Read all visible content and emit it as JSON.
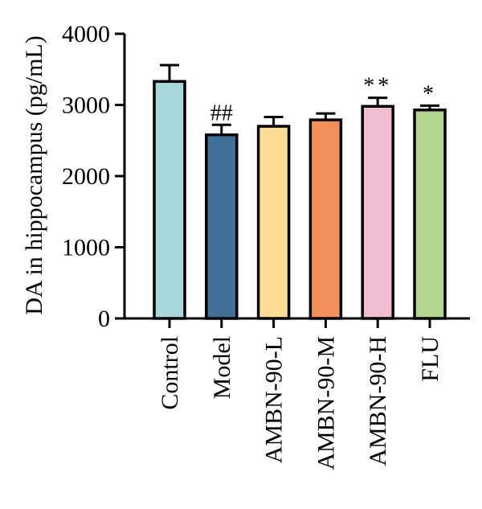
{
  "chart_data": {
    "type": "bar",
    "title": "",
    "xlabel": "",
    "ylabel": "DA in hippocampus (pg/mL)",
    "ylim": [
      0,
      4000
    ],
    "yticks": [
      0,
      1000,
      2000,
      3000,
      4000
    ],
    "categories": [
      "Control",
      "Model",
      "AMBN-90-L",
      "AMBN-90-M",
      "AMBN-90-H",
      "FLU"
    ],
    "values": [
      3330,
      2580,
      2700,
      2790,
      2980,
      2930
    ],
    "errors": [
      230,
      140,
      130,
      90,
      120,
      60
    ],
    "significance": [
      "",
      "##",
      "",
      "",
      "**",
      "*"
    ],
    "colors": [
      "#a8d8dc",
      "#3f7197",
      "#fddd93",
      "#f4905a",
      "#efbdd0",
      "#b3d68f"
    ],
    "grid": false,
    "legend": false
  }
}
